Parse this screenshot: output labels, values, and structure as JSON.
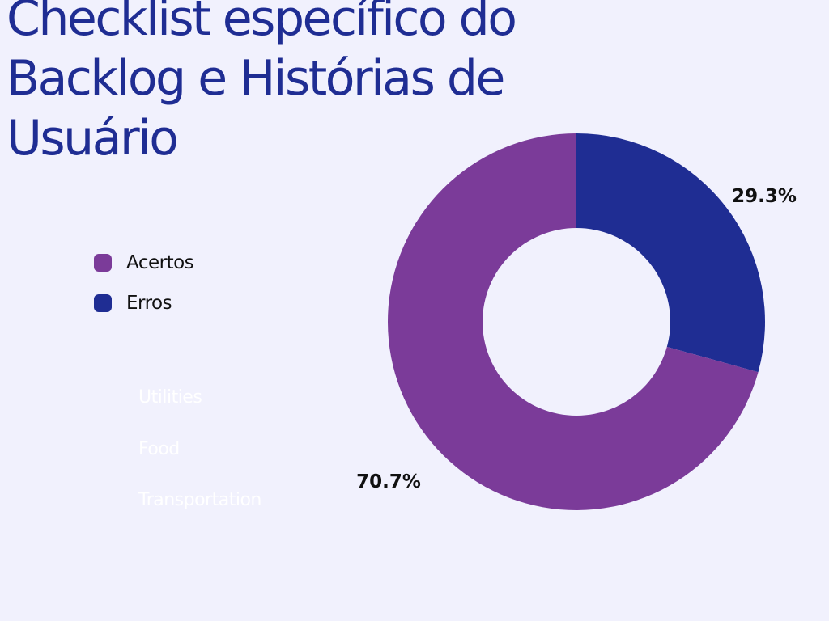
{
  "title": "Checklist específico do Backlog e Histórias de Usuário",
  "legend": [
    {
      "label": "Acertos",
      "color": "#7B3B99"
    },
    {
      "label": "Erros",
      "color": "#1F2D93"
    }
  ],
  "hidden_labels": [
    "Utilities",
    "Food",
    "Transportation"
  ],
  "chart_data": {
    "type": "pie",
    "donut": true,
    "legend_position": "left",
    "series": [
      {
        "name": "Erros",
        "value": 29.3,
        "label": "29.3%",
        "color": "#1F2D93"
      },
      {
        "name": "Acertos",
        "value": 70.7,
        "label": "70.7%",
        "color": "#7B3B99"
      }
    ]
  }
}
